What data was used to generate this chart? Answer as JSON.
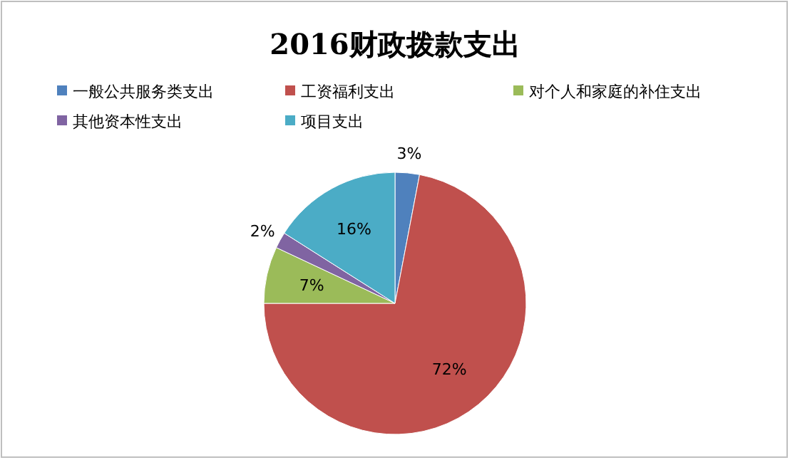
{
  "chart_data": {
    "type": "pie",
    "title": "2016财政拨款支出",
    "categories": [
      "一般公共服务类支出",
      "工资福利支出",
      "对个人和家庭的补住支出",
      "其他资本性支出",
      "项目支出"
    ],
    "values": [
      3,
      72,
      7,
      2,
      16
    ],
    "colors": [
      "#4f81bd",
      "#c0504d",
      "#9bbb59",
      "#8064a2",
      "#4bacc6"
    ],
    "value_labels": [
      "3%",
      "72%",
      "7%",
      "2%",
      "16%"
    ],
    "legend": "top"
  }
}
